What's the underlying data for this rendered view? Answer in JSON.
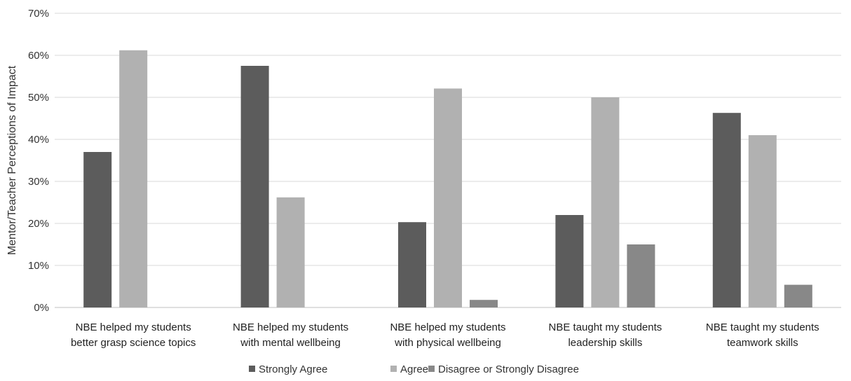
{
  "chart_data": {
    "type": "bar",
    "title": "",
    "xlabel": "",
    "ylabel": "Mentor/Teacher Perceptions of Impact",
    "ylim": [
      0,
      70
    ],
    "yticks": [
      "0%",
      "10%",
      "20%",
      "30%",
      "40%",
      "50%",
      "60%",
      "70%"
    ],
    "grid": true,
    "legend_position": "bottom",
    "categories": [
      [
        "NBE helped my students",
        "better grasp science topics"
      ],
      [
        "NBE helped my students",
        "with mental wellbeing"
      ],
      [
        "NBE helped my students",
        "with physical wellbeing"
      ],
      [
        "NBE taught my students",
        "leadership skills"
      ],
      [
        "NBE taught my students",
        "teamwork skills"
      ]
    ],
    "series": [
      {
        "name": "Strongly Agree",
        "color": "#5c5c5c",
        "values": [
          37,
          57.5,
          20.3,
          22,
          46.3
        ]
      },
      {
        "name": "Agree",
        "color": "#b1b1b1",
        "values": [
          61.2,
          26.2,
          52.1,
          50,
          41
        ]
      },
      {
        "name": "Disagree or Strongly Disagree",
        "color": "#888888",
        "values": [
          0,
          0,
          1.8,
          15,
          5.4
        ]
      }
    ]
  }
}
